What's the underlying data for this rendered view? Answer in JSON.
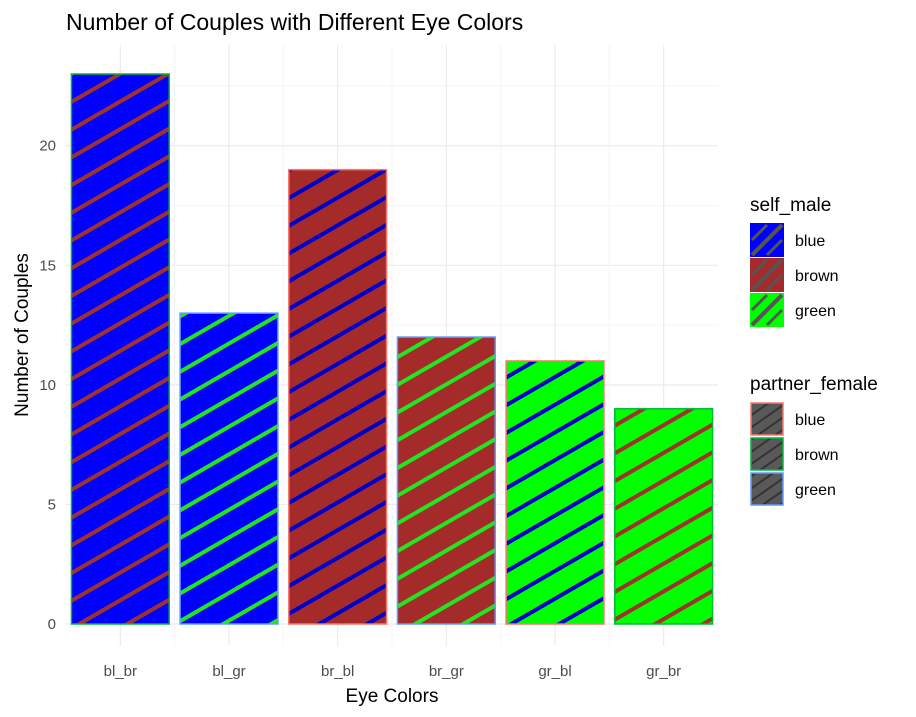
{
  "chart_data": {
    "type": "bar",
    "title": "Number of Couples with Different Eye Colors",
    "xlabel": "Eye Colors",
    "ylabel": "Number of Couples",
    "categories": [
      "bl_br",
      "bl_gr",
      "br_bl",
      "br_gr",
      "gr_bl",
      "gr_br"
    ],
    "values": [
      23,
      13,
      19,
      12,
      11,
      9
    ],
    "fill_group": [
      "blue",
      "blue",
      "brown",
      "brown",
      "green",
      "green"
    ],
    "pattern_group": [
      "brown",
      "green",
      "blue",
      "green",
      "blue",
      "brown"
    ],
    "ylim": [
      0,
      23.5
    ],
    "yticks": [
      0,
      5,
      10,
      15,
      20
    ],
    "grid": true,
    "legends": [
      {
        "title": "self_male",
        "kind": "fill",
        "entries": [
          {
            "label": "blue",
            "color": "#0000ff"
          },
          {
            "label": "brown",
            "color": "#a52a2a"
          },
          {
            "label": "green",
            "color": "#00ff00"
          }
        ]
      },
      {
        "title": "partner_female",
        "kind": "outline",
        "entries": [
          {
            "label": "blue",
            "color": "#f8766d"
          },
          {
            "label": "brown",
            "color": "#00ba38"
          },
          {
            "label": "green",
            "color": "#619cff"
          }
        ]
      }
    ],
    "legend_position": "right"
  },
  "colors": {
    "fill": {
      "blue": "#0000ff",
      "brown": "#a52a2a",
      "green": "#00ff00"
    },
    "stripe": {
      "blue": "#0000c8",
      "brown": "#a0322d",
      "green": "#22e622"
    },
    "outline": {
      "blue": "#f8766d",
      "brown": "#00ba38",
      "green": "#619cff"
    },
    "grid_major": "#ebebeb",
    "grid_minor": "#f5f5f5",
    "legend_key_fill": "#595959"
  }
}
